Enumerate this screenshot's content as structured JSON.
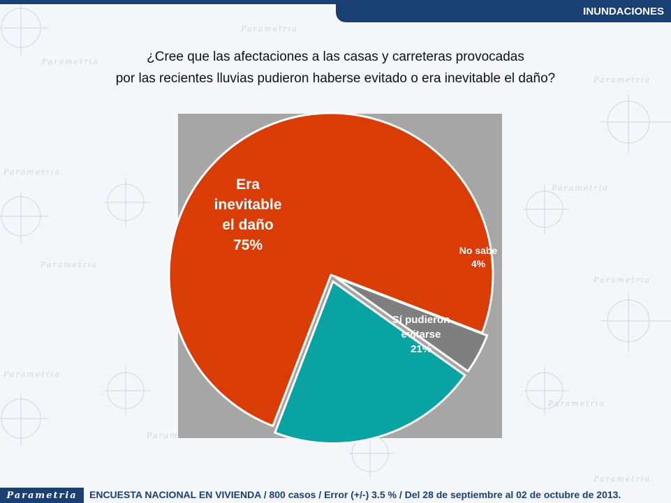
{
  "header": {
    "section": "INUNDACIONES"
  },
  "question": {
    "line1": "¿Cree que las afectaciones a las casas y carreteras provocadas",
    "line2": "por las recientes lluvias pudieron haberse evitado o era inevitable el daño?"
  },
  "chart_data": {
    "type": "pie",
    "title": "¿Cree que las afectaciones a las casas y carreteras provocadas por las recientes lluvias pudieron haberse evitado o era inevitable el daño?",
    "slices": [
      {
        "label": "Era inevitable el daño",
        "value": 75,
        "display": "75%",
        "color": "#d93d05",
        "label_lines": [
          "Era",
          "inevitable",
          "el daño",
          "75%"
        ]
      },
      {
        "label": "No sabe",
        "value": 4,
        "display": "4%",
        "color": "#7f7f7f",
        "label_lines": [
          "No sabe",
          "4%"
        ]
      },
      {
        "label": "Sí pudieron evitarse",
        "value": 21,
        "display": "21%",
        "color": "#0aa3a3",
        "label_lines": [
          "Sí pudieron",
          "evitarse",
          "21%"
        ]
      }
    ]
  },
  "watermark": {
    "brand": "Parametria"
  },
  "footer": {
    "logo": "Parametria",
    "text": "ENCUESTA NACIONAL EN VIVIENDA / 800 casos / Error (+/-) 3.5 % / Del 28 de septiembre al 02 de octubre de 2013."
  }
}
